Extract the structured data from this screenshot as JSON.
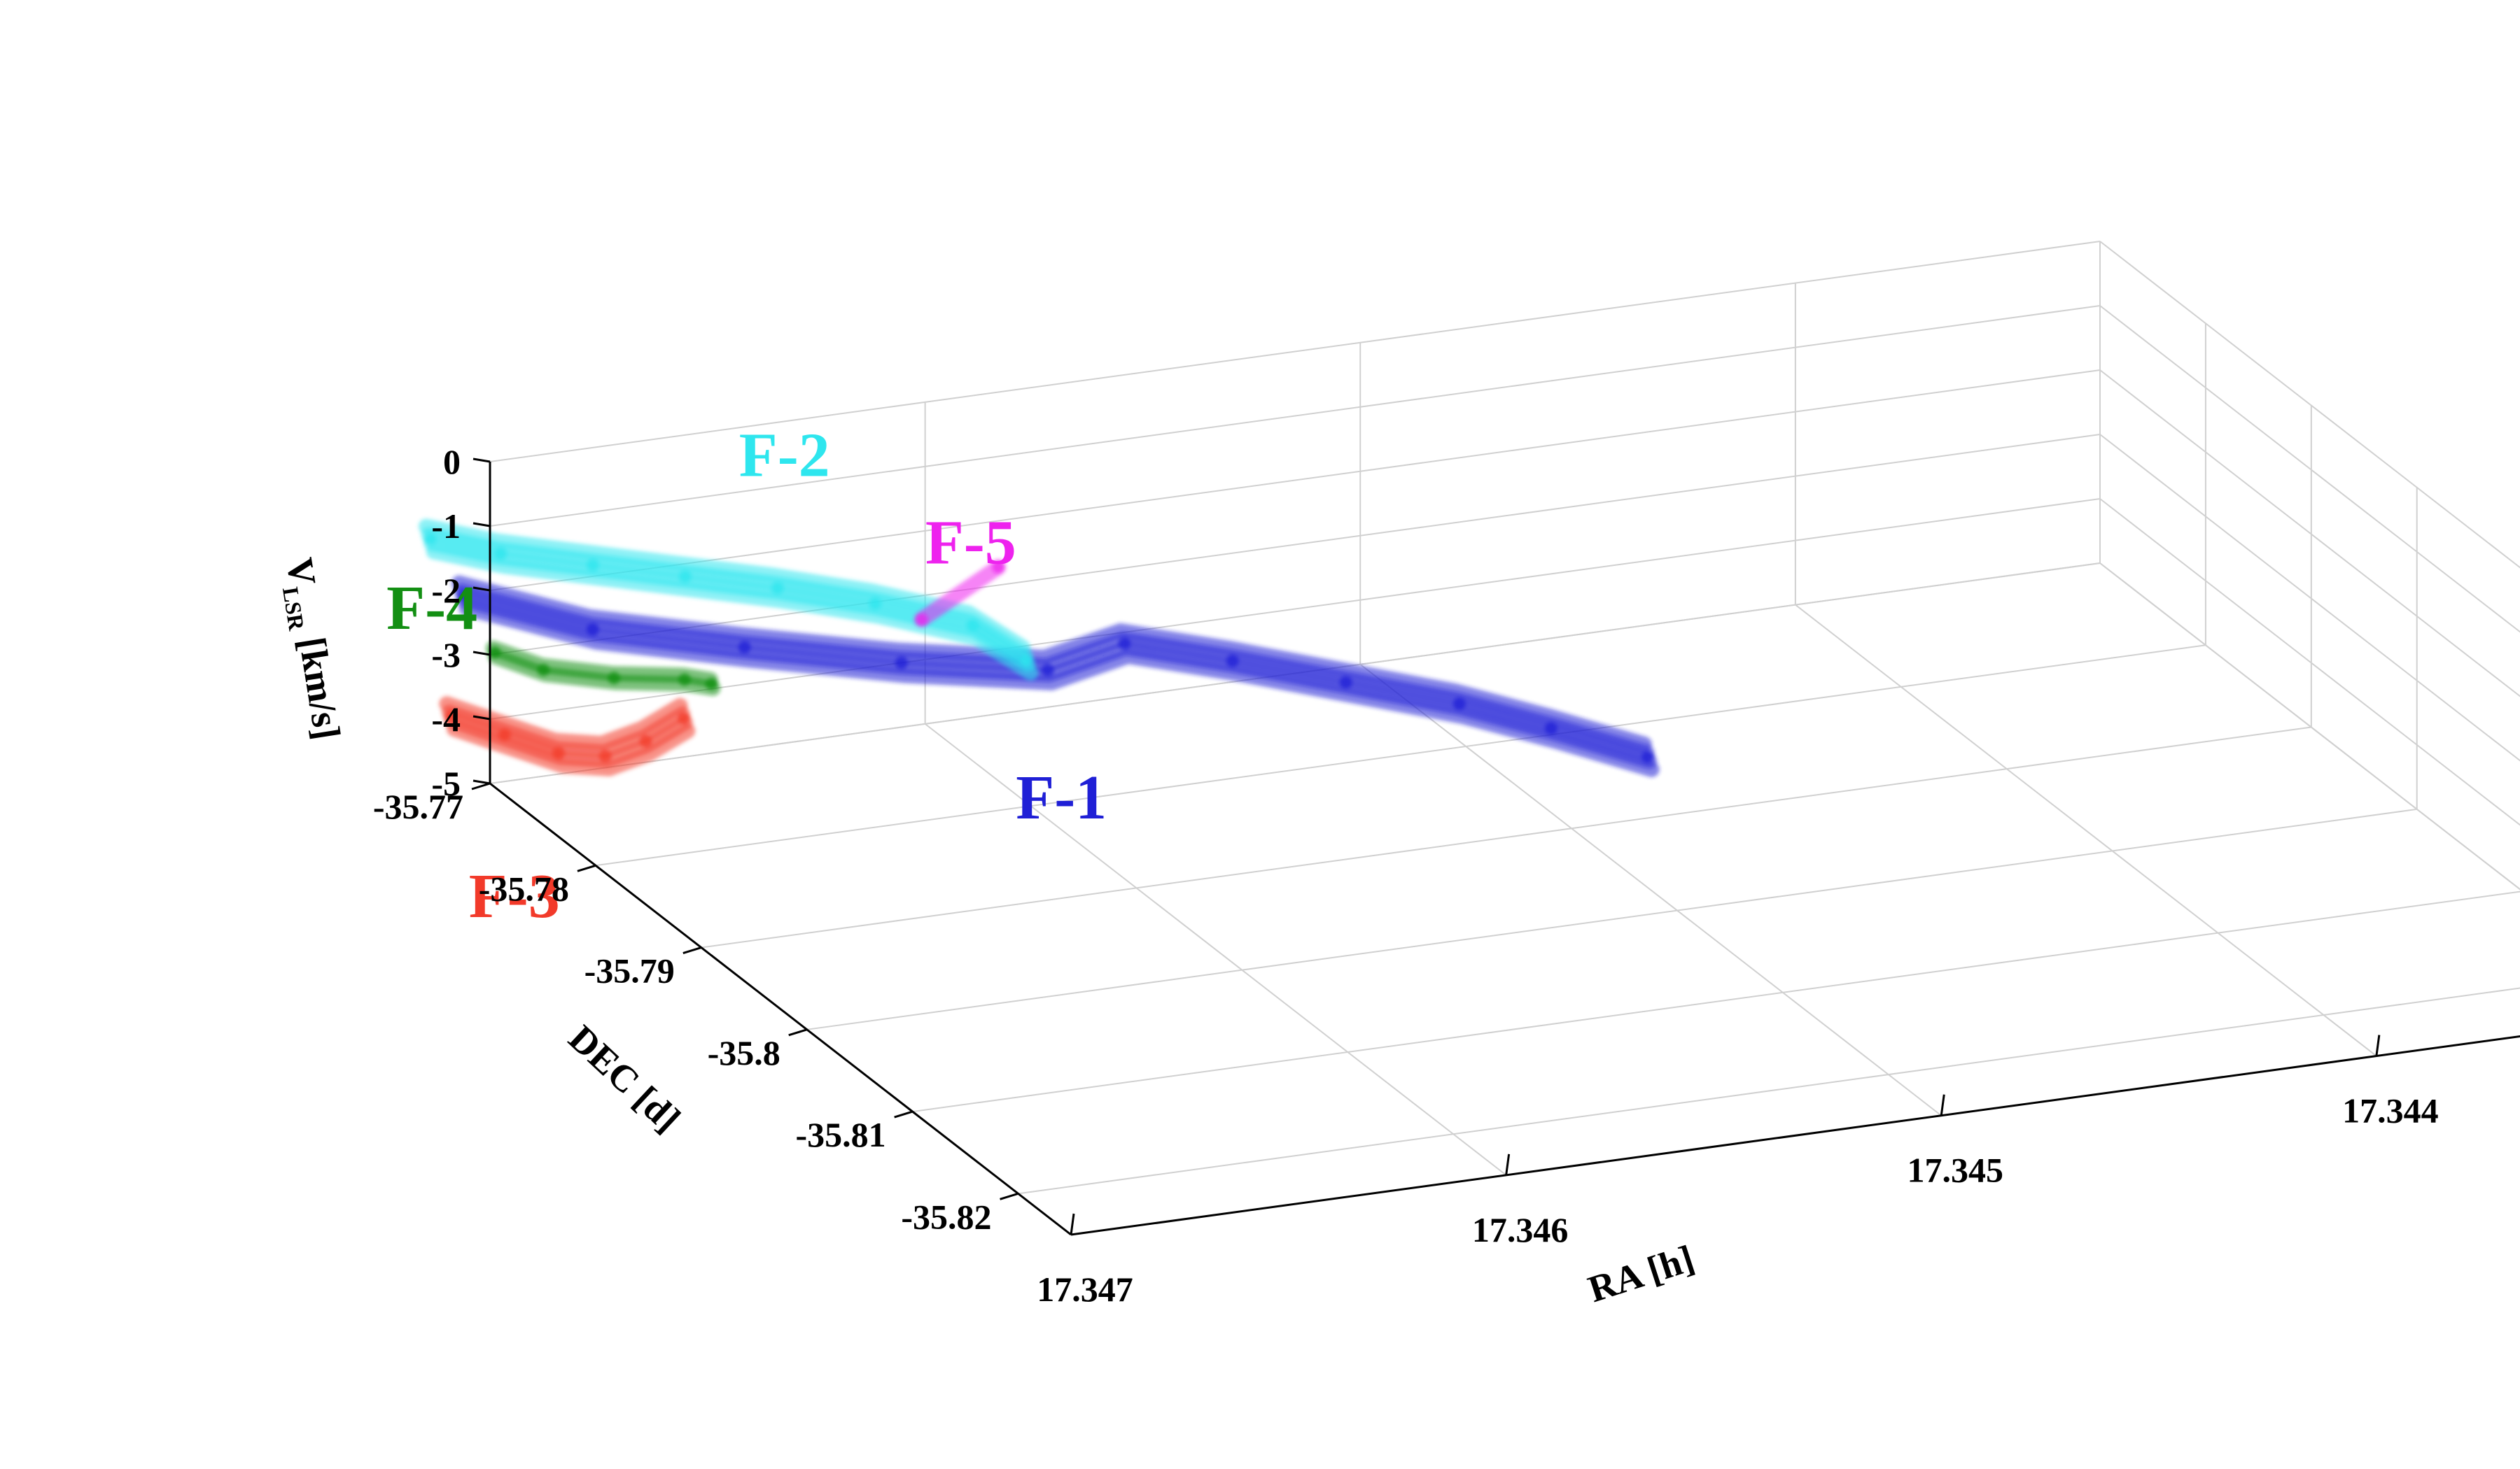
{
  "chart_data": {
    "type": "line",
    "projection": "3d",
    "grid": true,
    "axes": {
      "x": {
        "label": "RA [h]",
        "lim": [
          17.347,
          17.3433
        ],
        "ticks": [
          17.347,
          17.346,
          17.345,
          17.344
        ],
        "tick_labels": [
          "17.347",
          "17.346",
          "17.345",
          "17.344"
        ]
      },
      "y": {
        "label": "DEC [d]",
        "lim": [
          -35.77,
          -35.825
        ],
        "ticks": [
          -35.77,
          -35.78,
          -35.79,
          -35.8,
          -35.81,
          -35.82
        ],
        "tick_labels": [
          "-35.77",
          "-35.78",
          "-35.79",
          "-35.8",
          "-35.81",
          "-35.82"
        ]
      },
      "z": {
        "label_main": "V",
        "label_sub": "LSR",
        "label_rest": " [km/s]",
        "lim": [
          -5,
          0
        ],
        "ticks": [
          0,
          -1,
          -2,
          -3,
          -4,
          -5
        ],
        "tick_labels": [
          "0",
          "-1",
          "-2",
          "-3",
          "-4",
          "-5"
        ]
      }
    },
    "series": [
      {
        "name": "F-1",
        "color": "#1f1fd6",
        "strands": 4,
        "ra": [
          17.34705,
          17.3468,
          17.3465,
          17.3462,
          17.3459,
          17.3457,
          17.3455,
          17.3453,
          17.3451,
          17.34495,
          17.3448
        ],
        "dec": [
          -35.7695,
          -35.7715,
          -35.7735,
          -35.776,
          -35.7775,
          -35.7765,
          -35.7785,
          -35.781,
          -35.7835,
          -35.786,
          -35.789
        ],
        "v": [
          -2.1,
          -2.6,
          -2.9,
          -3.1,
          -3.3,
          -3.2,
          -3.4,
          -3.6,
          -3.8,
          -4.0,
          -4.2
        ]
      },
      {
        "name": "F-2",
        "color": "#2ee6ee",
        "strands": 4,
        "ra": [
          17.34715,
          17.347,
          17.3468,
          17.3466,
          17.3464,
          17.3462,
          17.346,
          17.3459
        ],
        "dec": [
          -35.7705,
          -35.771,
          -35.7715,
          -35.772,
          -35.7725,
          -35.7735,
          -35.7745,
          -35.7755
        ],
        "v": [
          -1.0,
          -1.3,
          -1.6,
          -1.9,
          -2.2,
          -2.5,
          -2.9,
          -3.4
        ]
      },
      {
        "name": "F-3",
        "color": "#f23a2a",
        "strands": 4,
        "ra": [
          17.3472,
          17.3471,
          17.347,
          17.3469,
          17.3468,
          17.3467
        ],
        "dec": [
          -35.7745,
          -35.7755,
          -35.7765,
          -35.7768,
          -35.7765,
          -35.776
        ],
        "v": [
          -3.2,
          -3.45,
          -3.7,
          -3.8,
          -3.7,
          -3.5
        ]
      },
      {
        "name": "F-4",
        "color": "#138f13",
        "strands": 2,
        "ra": [
          17.34705,
          17.34695,
          17.3468,
          17.34665,
          17.3466
        ],
        "dec": [
          -35.7725,
          -35.773,
          -35.7735,
          -35.774,
          -35.7745
        ],
        "v": [
          -2.6,
          -2.9,
          -3.1,
          -3.2,
          -3.25
        ]
      },
      {
        "name": "F-5",
        "color": "#ee22ee",
        "strands": 1,
        "ra": [
          17.3459,
          17.3461
        ],
        "dec": [
          -35.7728,
          -35.7738
        ],
        "v": [
          -2.3,
          -2.8
        ]
      }
    ]
  }
}
